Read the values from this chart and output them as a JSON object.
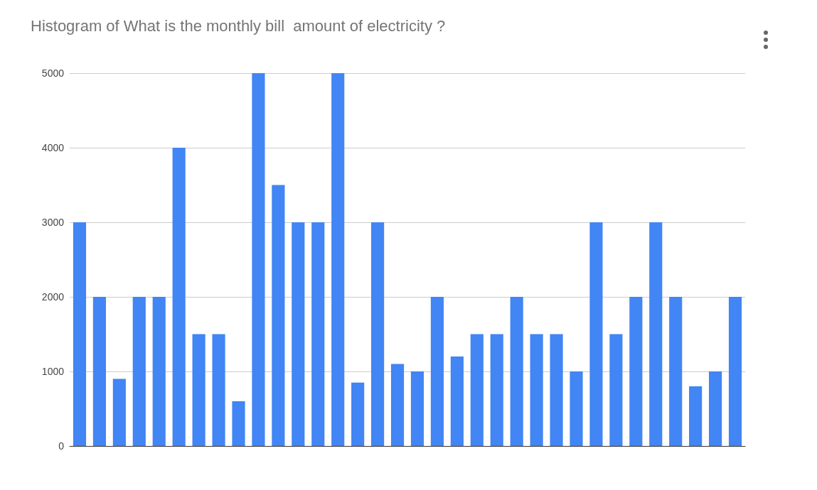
{
  "chart_data": {
    "type": "bar",
    "title": "Histogram of What is the monthly bill  amount of electricity ?",
    "categories": [
      null,
      null,
      null,
      null,
      null,
      null,
      null,
      null,
      null,
      null,
      null,
      null,
      null,
      null,
      null,
      null,
      null,
      null,
      null,
      null,
      null,
      null,
      null,
      null,
      null,
      null,
      null,
      null,
      null,
      null,
      null,
      null,
      null,
      null
    ],
    "values": [
      3000,
      2000,
      900,
      2000,
      2000,
      4000,
      1500,
      1500,
      600,
      5000,
      3500,
      3000,
      3000,
      5000,
      850,
      3000,
      1100,
      1000,
      2000,
      1200,
      1500,
      1500,
      2000,
      1500,
      1500,
      1000,
      3000,
      1500,
      2000,
      3000,
      2000,
      800,
      1000,
      2000
    ],
    "color": "#4285f4",
    "ylim": [
      0,
      5000
    ],
    "yticks": [
      0,
      1000,
      2000,
      3000,
      4000,
      5000
    ],
    "grid": "y",
    "tick_labels": "y"
  }
}
